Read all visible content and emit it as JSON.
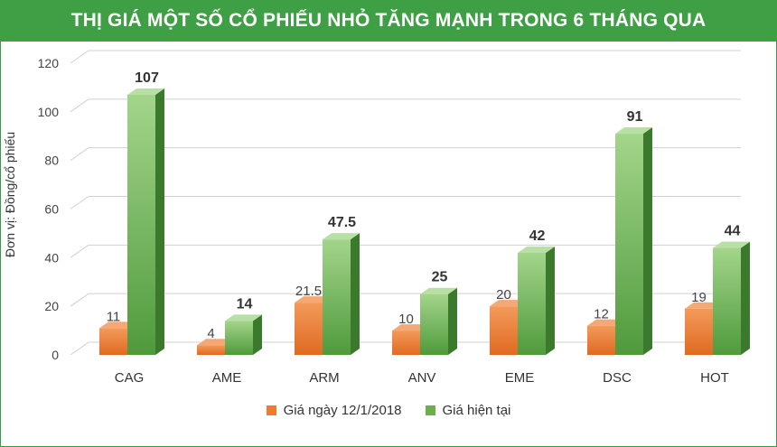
{
  "chart_data": {
    "type": "bar",
    "title": "THỊ GIÁ MỘT SỐ CỔ PHIẾU NHỎ TĂNG MẠNH TRONG 6 THÁNG QUA",
    "ylabel": "Đơn vị: Đồng/cổ phiếu",
    "xlabel": "",
    "ylim": [
      0,
      120
    ],
    "yticks": [
      0,
      20,
      40,
      60,
      80,
      100,
      120
    ],
    "grid": true,
    "legend_position": "bottom",
    "categories": [
      "CAG",
      "AME",
      "ARM",
      "ANV",
      "EME",
      "DSC",
      "HOT"
    ],
    "series": [
      {
        "name": "Giá ngày 12/1/2018",
        "color": "#f07a2e",
        "values": [
          11,
          4,
          21.5,
          10,
          20,
          12,
          19
        ],
        "labels": [
          "11",
          "4",
          "21.5",
          "10",
          "20",
          "12",
          "19"
        ]
      },
      {
        "name": "Giá hiện tại",
        "color": "#6cb04e",
        "values": [
          107,
          14,
          47.5,
          25,
          42,
          91,
          44
        ],
        "labels": [
          "107",
          "14",
          "47.5",
          "25",
          "42",
          "91",
          "44"
        ]
      }
    ]
  }
}
